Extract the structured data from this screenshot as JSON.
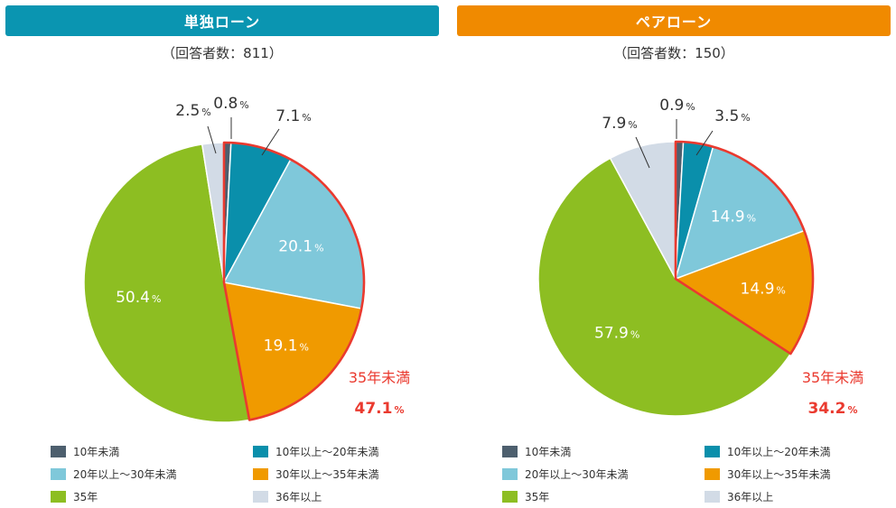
{
  "chart_data": [
    {
      "type": "pie",
      "title": "単独ローン",
      "respondents": "（回答者数：811）",
      "slices": [
        {
          "label": "10年未満",
          "value": 0.8,
          "display": "0.8"
        },
        {
          "label": "10年以上～20年未満",
          "value": 7.1,
          "display": "7.1"
        },
        {
          "label": "20年以上～30年未満",
          "value": 20.1,
          "display": "20.1"
        },
        {
          "label": "30年以上～35年未満",
          "value": 19.1,
          "display": "19.1"
        },
        {
          "label": "35年",
          "value": 50.4,
          "display": "50.4"
        },
        {
          "label": "36年以上",
          "value": 2.5,
          "display": "2.5"
        }
      ],
      "highlight": {
        "label": "35年未満",
        "value": 47.1,
        "display": "47.1"
      },
      "unit": "%"
    },
    {
      "type": "pie",
      "title": "ペアローン",
      "respondents": "（回答者数：150）",
      "slices": [
        {
          "label": "10年未満",
          "value": 0.9,
          "display": "0.9"
        },
        {
          "label": "10年以上～20年未満",
          "value": 3.5,
          "display": "3.5"
        },
        {
          "label": "20年以上～30年未満",
          "value": 14.9,
          "display": "14.9"
        },
        {
          "label": "30年以上～35年未満",
          "value": 14.9,
          "display": "14.9"
        },
        {
          "label": "35年",
          "value": 57.9,
          "display": "57.9"
        },
        {
          "label": "36年以上",
          "value": 7.9,
          "display": "7.9"
        }
      ],
      "highlight": {
        "label": "35年未満",
        "value": 34.2,
        "display": "34.2"
      },
      "unit": "%"
    }
  ],
  "colors": {
    "slices": [
      "#4d5f6e",
      "#0a8fab",
      "#7fc8da",
      "#f09a00",
      "#8dbe22",
      "#d2dbe6"
    ],
    "header_left": "#0a95b1",
    "header_right": "#f08a00",
    "highlight_outline": "#ea3a2f",
    "highlight_text": "#ea3a2f",
    "label_dark": "#333333",
    "label_light": "#ffffff"
  }
}
